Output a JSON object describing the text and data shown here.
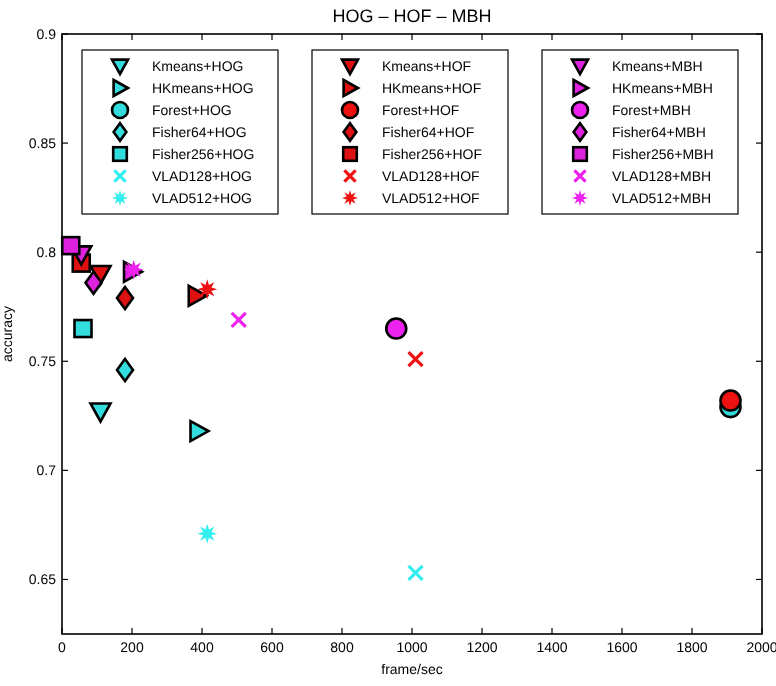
{
  "chart_data": {
    "type": "scatter",
    "title": "HOG – HOF – MBH",
    "xlabel": "frame/sec",
    "ylabel": "accuracy",
    "xlim": [
      0,
      2000
    ],
    "xticks": [
      0,
      200,
      400,
      600,
      800,
      1000,
      1200,
      1400,
      1600,
      1800,
      2000
    ],
    "ylim": [
      0.625,
      0.9
    ],
    "yticks": [
      0.65,
      0.7,
      0.75,
      0.8,
      0.85,
      0.9
    ],
    "grid": false,
    "legend": "top",
    "series": [
      {
        "name": "Kmeans+HOG",
        "color": "#33dddd",
        "marker": "triangle-down",
        "x": [
          110
        ],
        "values": [
          0.727
        ]
      },
      {
        "name": "HKmeans+HOG",
        "color": "#33dddd",
        "marker": "triangle-right",
        "x": [
          390
        ],
        "values": [
          0.718
        ]
      },
      {
        "name": "Forest+HOG",
        "color": "#33dddd",
        "marker": "circle",
        "x": [
          1910
        ],
        "values": [
          0.729
        ]
      },
      {
        "name": "Fisher64+HOG",
        "color": "#33dddd",
        "marker": "diamond",
        "x": [
          180
        ],
        "values": [
          0.746
        ]
      },
      {
        "name": "Fisher256+HOG",
        "color": "#33dddd",
        "marker": "square",
        "x": [
          60
        ],
        "values": [
          0.765
        ]
      },
      {
        "name": "VLAD128+HOG",
        "color": "#33eeee",
        "marker": "cross",
        "x": [
          1010
        ],
        "values": [
          0.653
        ]
      },
      {
        "name": "VLAD512+HOG",
        "color": "#33eeee",
        "marker": "star",
        "x": [
          415
        ],
        "values": [
          0.671
        ]
      },
      {
        "name": "Kmeans+HOF",
        "color": "#dd1111",
        "marker": "triangle-down",
        "x": [
          110
        ],
        "values": [
          0.79
        ]
      },
      {
        "name": "HKmeans+HOF",
        "color": "#dd1111",
        "marker": "triangle-right",
        "x": [
          385
        ],
        "values": [
          0.78
        ]
      },
      {
        "name": "Forest+HOF",
        "color": "#ee1111",
        "marker": "circle",
        "x": [
          1910
        ],
        "values": [
          0.732
        ]
      },
      {
        "name": "Fisher64+HOF",
        "color": "#dd1111",
        "marker": "diamond",
        "x": [
          180
        ],
        "values": [
          0.779
        ]
      },
      {
        "name": "Fisher256+HOF",
        "color": "#dd1111",
        "marker": "square",
        "x": [
          55
        ],
        "values": [
          0.795
        ]
      },
      {
        "name": "VLAD128+HOF",
        "color": "#ee1111",
        "marker": "cross",
        "x": [
          1010
        ],
        "values": [
          0.751
        ]
      },
      {
        "name": "VLAD512+HOF",
        "color": "#ee1111",
        "marker": "star",
        "x": [
          415
        ],
        "values": [
          0.783
        ]
      },
      {
        "name": "Kmeans+MBH",
        "color": "#dd22dd",
        "marker": "triangle-down",
        "x": [
          55
        ],
        "values": [
          0.799
        ]
      },
      {
        "name": "HKmeans+MBH",
        "color": "#dd22dd",
        "marker": "triangle-right",
        "x": [
          200
        ],
        "values": [
          0.791
        ]
      },
      {
        "name": "Forest+MBH",
        "color": "#ee22ee",
        "marker": "circle",
        "x": [
          955
        ],
        "values": [
          0.765
        ]
      },
      {
        "name": "Fisher64+MBH",
        "color": "#dd22dd",
        "marker": "diamond",
        "x": [
          90
        ],
        "values": [
          0.786
        ]
      },
      {
        "name": "Fisher256+MBH",
        "color": "#dd22dd",
        "marker": "square",
        "x": [
          25
        ],
        "values": [
          0.803
        ]
      },
      {
        "name": "VLAD128+MBH",
        "color": "#ee22ee",
        "marker": "cross",
        "x": [
          505
        ],
        "values": [
          0.769
        ]
      },
      {
        "name": "VLAD512+MBH",
        "color": "#ee22ee",
        "marker": "star",
        "x": [
          205
        ],
        "values": [
          0.792
        ]
      }
    ]
  }
}
